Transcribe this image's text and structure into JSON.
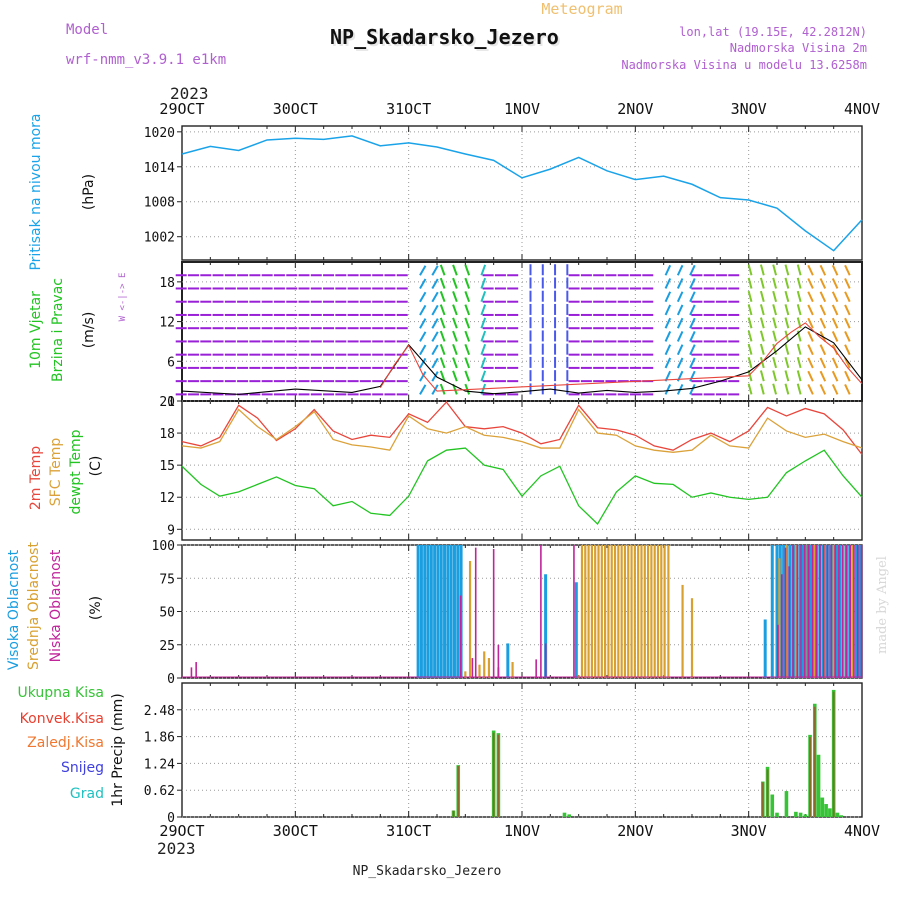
{
  "header": {
    "app_label": "Meteogram",
    "model_label": "Model",
    "model_value": "wrf-nmm_v3.9.1 e1km",
    "station": "NP_Skadarsko_Jezero",
    "lonlat": "lon,lat (19.15E, 42.2812N)",
    "elev": "Nadmorska Visina 2m",
    "elev_model": "Nadmorska Visina u modelu 13.6258m",
    "year": "2023",
    "footer_station": "NP_Skadarsko_Jezero",
    "credit": "made by Angel"
  },
  "colors": {
    "pressure": "#1aa3e8",
    "t2m": "#e8463c",
    "sfc": "#dba23a",
    "dewpt": "#22c422",
    "high": "#1a9ee0",
    "mid": "#d8a030",
    "low": "#c0239a",
    "total_precip": "#36c436",
    "conv_precip": "#e84030",
    "frz_precip": "#f07830",
    "snow": "#4040e0",
    "grad": "#20c0c0",
    "gust": "#000000",
    "vector": "#9a20d8"
  },
  "chart_data": [
    {
      "type": "line",
      "name": "pressure",
      "ylabel_1": "Pritisak na nivou mora",
      "ylabel_2": "(hPa)",
      "x_ticks": [
        "29OCT",
        "30OCT",
        "31OCT",
        "1NOV",
        "2NOV",
        "3NOV",
        "4NOV"
      ],
      "ylim": [
        998,
        1021
      ],
      "y_ticks": [
        1002,
        1008,
        1014,
        1020
      ],
      "x_hours": [
        0,
        6,
        12,
        18,
        24,
        30,
        36,
        42,
        48,
        54,
        60,
        66,
        72,
        78,
        84,
        90,
        96,
        102,
        108,
        114,
        120,
        126,
        132,
        138,
        144
      ],
      "values": [
        1016.2,
        1017.5,
        1016.8,
        1018.6,
        1018.9,
        1018.7,
        1019.3,
        1017.6,
        1018.1,
        1017.4,
        1016.2,
        1015.1,
        1012.1,
        1013.6,
        1015.6,
        1013.3,
        1011.8,
        1012.4,
        1011.0,
        1008.7,
        1008.3,
        1006.9,
        1003.0,
        999.6,
        1004.9
      ]
    },
    {
      "type": "line",
      "name": "wind",
      "ylabel_1": "10m Vjetar",
      "ylabel_2": "Brzina i Pravac",
      "ylabel_3": "(m/s)",
      "compass": "W <-|-> E",
      "ylim": [
        0,
        21
      ],
      "y_ticks": [
        0,
        6,
        12,
        18
      ],
      "speed_series": {
        "x_hours": [
          0,
          12,
          24,
          36,
          42,
          48,
          54,
          60,
          66,
          72,
          78,
          84,
          90,
          96,
          102,
          108,
          114,
          120,
          126,
          132,
          138,
          144
        ],
        "values": [
          1.5,
          1.0,
          1.8,
          1.3,
          2.2,
          8.5,
          3.6,
          1.5,
          1.1,
          1.4,
          1.8,
          1.2,
          1.6,
          1.3,
          1.5,
          1.9,
          3.0,
          4.4,
          7.6,
          11.2,
          8.8,
          3.2
        ]
      },
      "gust_series": {
        "x_hours": [
          42,
          45,
          48,
          51,
          54,
          120,
          123,
          126,
          129,
          132,
          135,
          138,
          141,
          144
        ],
        "values": [
          2.0,
          5.5,
          8.4,
          4.0,
          1.5,
          3.8,
          6.0,
          8.7,
          10.4,
          11.8,
          9.7,
          8.0,
          5.0,
          2.6
        ]
      }
    },
    {
      "type": "line",
      "name": "temperature",
      "ylabel_1": "2m Temp",
      "ylabel_2": "SFC Temp",
      "ylabel_3": "dewpt Temp",
      "ylabel_4": "(C)",
      "ylim": [
        8,
        21
      ],
      "y_ticks": [
        9,
        12,
        15,
        18,
        21
      ],
      "x_hours": [
        0,
        4,
        8,
        12,
        16,
        20,
        24,
        28,
        32,
        36,
        40,
        44,
        48,
        52,
        56,
        60,
        64,
        68,
        72,
        76,
        80,
        84,
        88,
        92,
        96,
        100,
        104,
        108,
        112,
        116,
        120,
        124,
        128,
        132,
        136,
        140,
        144
      ],
      "series": [
        {
          "name": "2m Temp",
          "values": [
            17.2,
            16.8,
            17.6,
            20.6,
            19.4,
            17.3,
            18.4,
            20.2,
            18.2,
            17.4,
            17.8,
            17.6,
            19.8,
            19.0,
            20.9,
            18.6,
            18.4,
            18.6,
            18.0,
            17.0,
            17.4,
            20.6,
            18.5,
            18.3,
            17.8,
            16.8,
            16.4,
            17.4,
            18.0,
            17.2,
            18.2,
            20.4,
            19.6,
            20.3,
            19.8,
            18.3,
            16.0
          ]
        },
        {
          "name": "SFC Temp",
          "values": [
            16.8,
            16.6,
            17.2,
            20.2,
            18.6,
            17.4,
            18.6,
            20.0,
            17.4,
            16.9,
            16.7,
            16.4,
            19.6,
            18.4,
            18.0,
            18.6,
            17.8,
            17.6,
            17.2,
            16.6,
            16.6,
            20.2,
            18.0,
            17.8,
            16.8,
            16.4,
            16.2,
            16.4,
            17.8,
            16.8,
            16.6,
            19.4,
            18.2,
            17.6,
            17.9,
            17.2,
            16.6
          ]
        },
        {
          "name": "dewpt Temp",
          "values": [
            14.9,
            13.2,
            12.1,
            12.5,
            13.2,
            13.9,
            13.1,
            12.8,
            11.2,
            11.6,
            10.5,
            10.3,
            12.1,
            15.4,
            16.4,
            16.6,
            15.0,
            14.6,
            12.1,
            14.0,
            14.9,
            11.2,
            9.5,
            12.5,
            14.0,
            13.3,
            13.2,
            12.0,
            12.4,
            12.0,
            11.8,
            12.0,
            14.3,
            15.4,
            16.4,
            14.0,
            12.0
          ]
        }
      ]
    },
    {
      "type": "bar",
      "name": "clouds",
      "ylabel_1": "Visoka Oblacnost",
      "ylabel_2": "Srednja Oblacnost",
      "ylabel_3": "Niska Oblacnost",
      "ylabel_4": "(%)",
      "ylim": [
        0,
        100
      ],
      "y_ticks": [
        0,
        25,
        50,
        75,
        100
      ],
      "series": [
        {
          "name": "Visoka Oblacnost",
          "x_hours": [
            50,
            50.7,
            51.4,
            52.1,
            52.8,
            53.5,
            54.2,
            54.9,
            55.6,
            56.3,
            57,
            57.7,
            58.4,
            59.1,
            69,
            77,
            83.5,
            123.5,
            125,
            126,
            126.7,
            127.4,
            128.1,
            128.8,
            129.5,
            130.2,
            130.9,
            131.6,
            132.3,
            133,
            133.7,
            134.4,
            135.1,
            135.8,
            136.5,
            137.2,
            137.9,
            138.6,
            139.3,
            140,
            140.7,
            141.4,
            142.1,
            142.8,
            143.5
          ],
          "values": [
            100,
            100,
            100,
            100,
            100,
            100,
            100,
            100,
            100,
            100,
            100,
            100,
            100,
            100,
            26,
            78,
            72,
            44,
            100,
            100,
            100,
            100,
            100,
            100,
            100,
            100,
            100,
            100,
            100,
            100,
            100,
            100,
            100,
            100,
            100,
            100,
            100,
            100,
            100,
            100,
            100,
            100,
            100,
            100,
            100
          ]
        },
        {
          "name": "Srednja Oblacnost",
          "x_hours": [
            60,
            61,
            63,
            64,
            65,
            67,
            70,
            84,
            84.7,
            85.4,
            86.1,
            86.8,
            87.5,
            88.2,
            88.9,
            89.6,
            90.3,
            91,
            91.7,
            92.4,
            93.1,
            93.8,
            94.5,
            95.2,
            95.9,
            96.6,
            97.3,
            98,
            98.7,
            99.4,
            100.1,
            100.8,
            101.5,
            102.2,
            103,
            106,
            108,
            126.5,
            128,
            130,
            132,
            134,
            136,
            138,
            140,
            142
          ],
          "values": [
            5,
            88,
            10,
            20,
            15,
            8,
            12,
            2,
            100,
            100,
            100,
            100,
            100,
            100,
            100,
            100,
            100,
            100,
            100,
            100,
            100,
            100,
            100,
            100,
            100,
            100,
            100,
            100,
            100,
            100,
            100,
            100,
            100,
            100,
            100,
            70,
            60,
            90,
            100,
            100,
            100,
            100,
            100,
            100,
            100,
            100
          ]
        },
        {
          "name": "Niska Oblacnost",
          "x_hours": [
            2,
            3,
            59,
            61.5,
            62.2,
            66,
            67,
            75,
            76,
            77,
            83,
            126.2,
            127,
            127.8,
            128.6,
            129.4,
            130.3,
            131.1,
            131.9,
            132.7,
            133.5,
            134.3,
            135.1,
            135.9,
            136.7,
            137.5,
            138.3,
            139.1,
            139.9,
            140.7,
            141.5,
            142.3,
            143.1,
            143.9
          ],
          "values": [
            8,
            12,
            62,
            15,
            98,
            97,
            25,
            14,
            100,
            26,
            100,
            40,
            78,
            98,
            84,
            100,
            100,
            100,
            100,
            100,
            100,
            100,
            100,
            100,
            100,
            100,
            100,
            100,
            100,
            100,
            100,
            100,
            100,
            100
          ]
        }
      ]
    },
    {
      "type": "bar",
      "name": "precip",
      "ylabel_1": "1hr Precip (mm)",
      "legend": [
        "Ukupna Kisa",
        "Konvek.Kisa",
        "Zaledj.Kisa",
        "Snijeg",
        "Grad"
      ],
      "ylim": [
        0,
        3.1
      ],
      "y_ticks": [
        0,
        0.62,
        1.24,
        1.86,
        2.48
      ],
      "series": [
        {
          "name": "Ukupna Kisa",
          "x_hours": [
            57.5,
            58.5,
            66,
            67,
            81,
            82,
            123,
            124,
            125,
            126,
            128,
            130,
            131,
            132,
            133,
            134,
            134.8,
            135.6,
            136.4,
            137.2,
            138,
            138.8,
            139.6
          ],
          "values": [
            0.15,
            1.2,
            2.0,
            1.94,
            0.1,
            0.06,
            0.82,
            1.16,
            0.52,
            0.1,
            0.6,
            0.12,
            0.1,
            0.06,
            1.9,
            2.62,
            1.44,
            0.45,
            0.3,
            0.2,
            2.94,
            0.1,
            0.04
          ]
        },
        {
          "name": "Konvek.Kisa",
          "x_hours": [
            57.5,
            58.5,
            66,
            67,
            123,
            124,
            133,
            134,
            138
          ],
          "values": [
            0.15,
            1.18,
            1.95,
            1.9,
            0.8,
            1.1,
            1.85,
            2.55,
            2.9
          ]
        }
      ]
    }
  ]
}
